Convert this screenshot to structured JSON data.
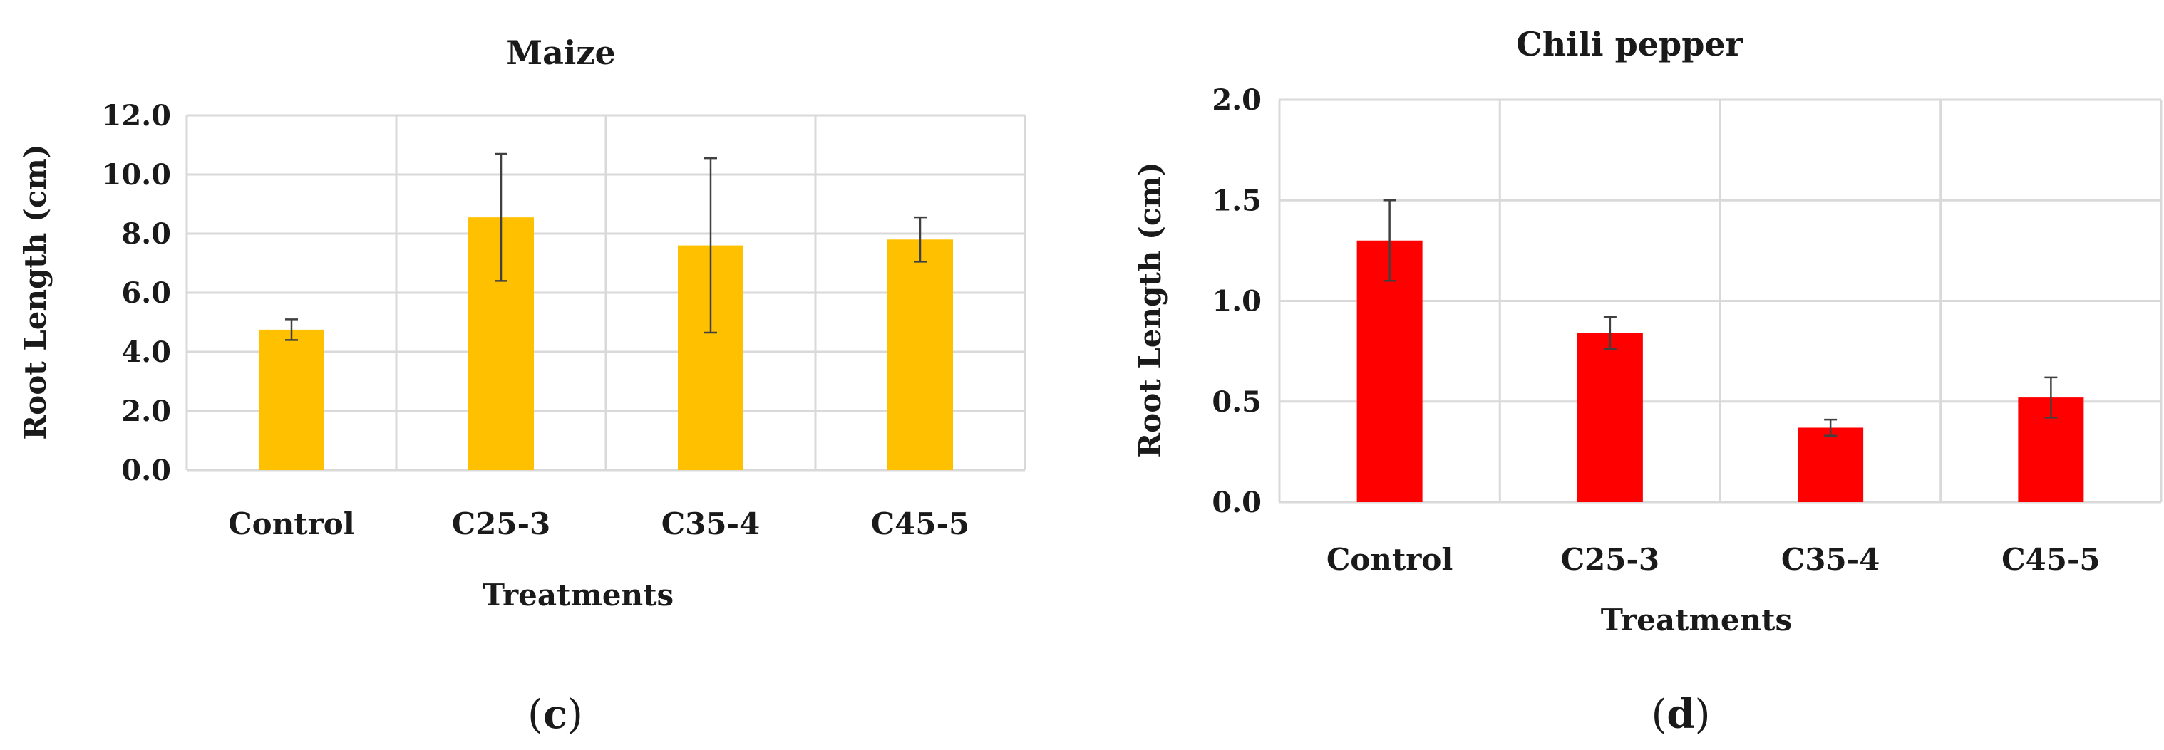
{
  "chart_data": [
    {
      "type": "bar",
      "title": "Maize",
      "xlabel": "Treatments",
      "ylabel": "Root Length (cm)",
      "categories": [
        "Control",
        "C25-3",
        "C35-4",
        "C45-5"
      ],
      "values": [
        4.75,
        8.55,
        7.6,
        7.8
      ],
      "errors": [
        0.35,
        2.15,
        2.95,
        0.75
      ],
      "ylim": [
        0,
        12
      ],
      "yticks": [
        0,
        2,
        4,
        6,
        8,
        10,
        12
      ],
      "ytick_labels": [
        "0.0",
        "2.0",
        "4.0",
        "6.0",
        "8.0",
        "10.0",
        "12.0"
      ],
      "color": "#FFC000",
      "grid": true,
      "panel_label": "c"
    },
    {
      "type": "bar",
      "title": "Chili pepper",
      "xlabel": "Treatments",
      "ylabel": "Root Length (cm)",
      "categories": [
        "Control",
        "C25-3",
        "C35-4",
        "C45-5"
      ],
      "values": [
        1.3,
        0.84,
        0.37,
        0.52
      ],
      "errors": [
        0.2,
        0.08,
        0.04,
        0.1
      ],
      "ylim": [
        0,
        2
      ],
      "yticks": [
        0,
        0.5,
        1,
        1.5,
        2
      ],
      "ytick_labels": [
        "0.0",
        "0.5",
        "1.0",
        "1.5",
        "2.0"
      ],
      "color": "#FF0000",
      "grid": true,
      "panel_label": "d"
    }
  ]
}
